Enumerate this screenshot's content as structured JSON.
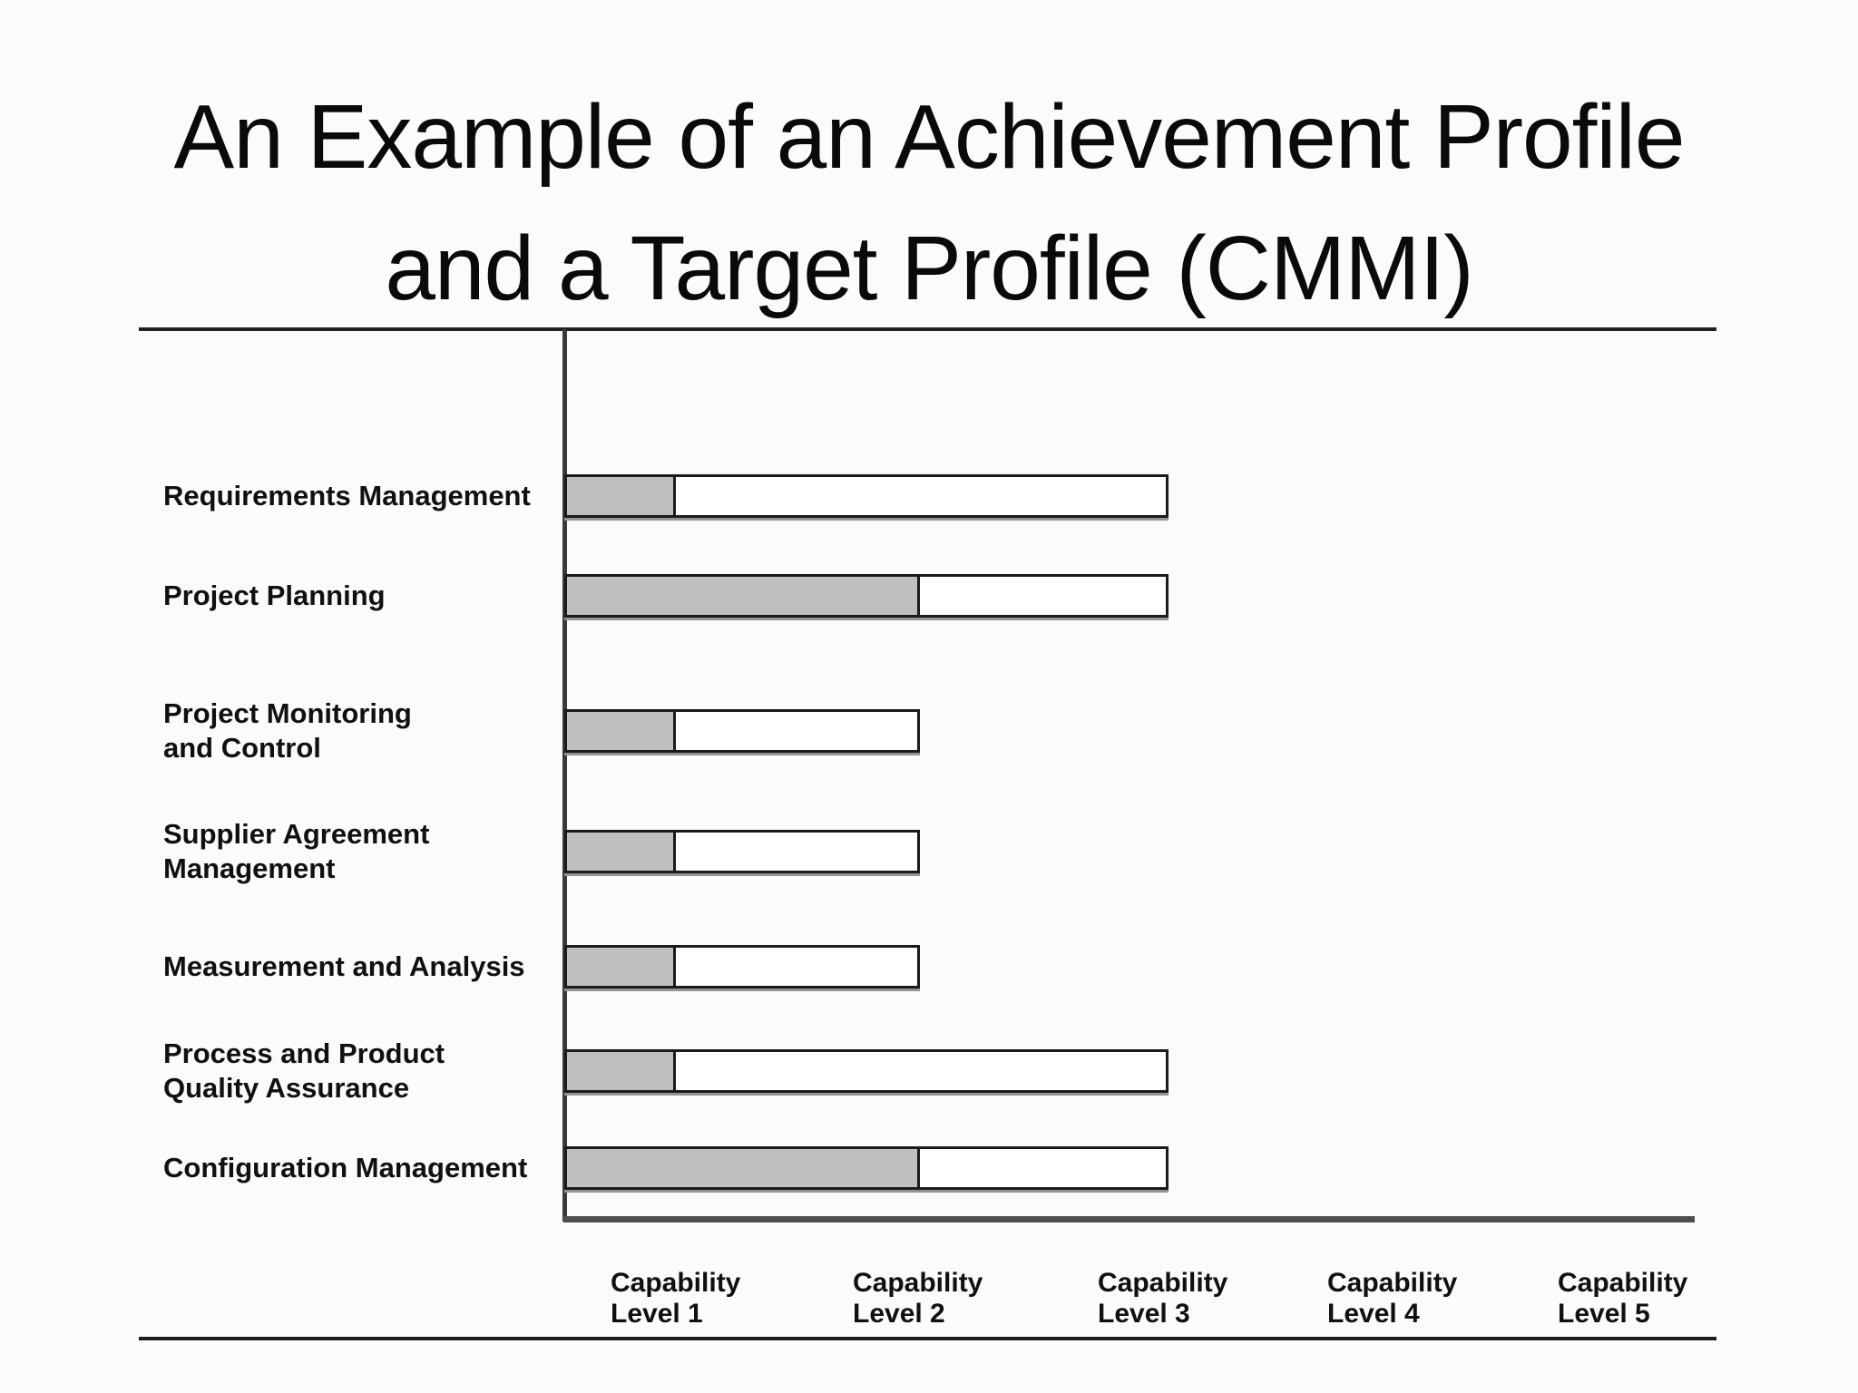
{
  "header": {
    "title_line1": "An Example of an Achievement Profile",
    "title_line2": "and a Target Profile (CMMI)"
  },
  "chart_data": {
    "type": "bar",
    "orientation": "horizontal",
    "variant": "stacked-profile",
    "title": "An Example of an Achievement Profile and a Target Profile (CMMI)",
    "categories": [
      "Requirements Management",
      "Project Planning",
      "Project Monitoring and Control",
      "Supplier Agreement Management",
      "Measurement and Analysis",
      "Process and Product Quality Assurance",
      "Configuration Management"
    ],
    "category_label_lines": [
      [
        "Requirements Management"
      ],
      [
        "Project Planning"
      ],
      [
        "Project Monitoring",
        "and Control"
      ],
      [
        "Supplier Agreement",
        "Management"
      ],
      [
        "Measurement and Analysis"
      ],
      [
        "Process and Product",
        "Quality Assurance"
      ],
      [
        "Configuration Management"
      ]
    ],
    "series": [
      {
        "name": "Achievement Profile",
        "style": "filled",
        "fill_color": "#bfbfbf",
        "values": [
          1,
          2,
          1,
          1,
          1,
          1,
          2
        ]
      },
      {
        "name": "Target Profile",
        "style": "outline",
        "fill_color": "#ffffff",
        "values": [
          3,
          3,
          2,
          2,
          2,
          3,
          3
        ]
      }
    ],
    "x_axis": {
      "min": 0,
      "max": 5,
      "tick_labels": [
        [
          "Capability",
          "Level 1"
        ],
        [
          "Capability",
          "Level 2"
        ],
        [
          "Capability",
          "Level 3"
        ],
        [
          "Capability",
          "Level 4"
        ],
        [
          "Capability",
          "Level 5"
        ]
      ]
    },
    "y_axis": {
      "label": ""
    },
    "grid": false,
    "legend": "none",
    "bar_border_color": "#1b1b1b"
  }
}
